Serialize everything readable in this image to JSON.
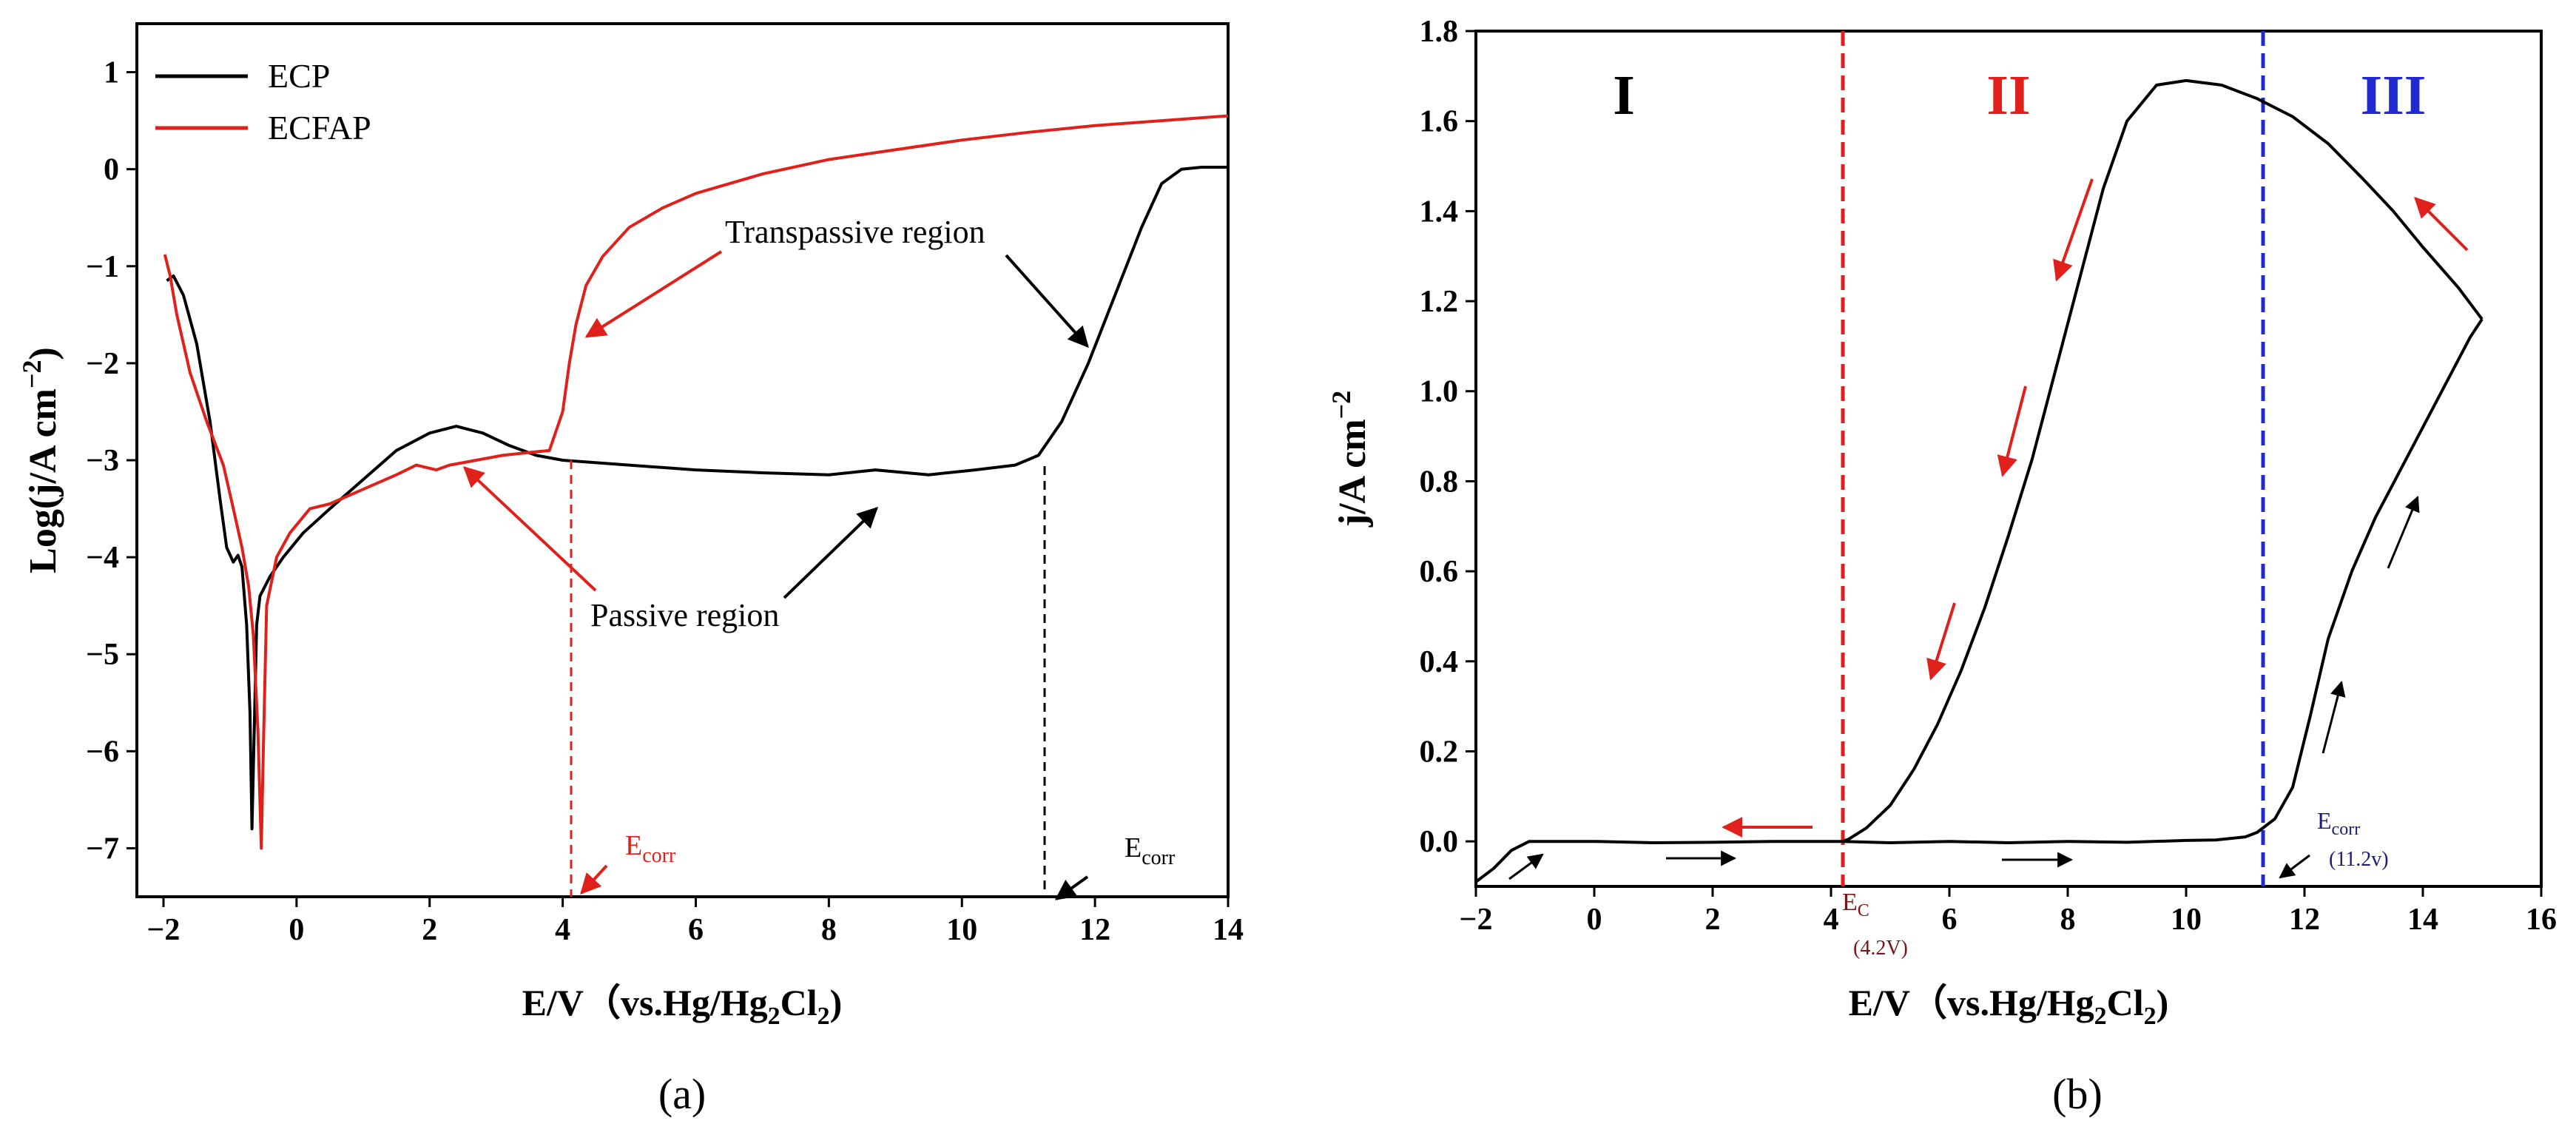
{
  "chart_data": [
    {
      "panel_label": "(a)",
      "type": "line",
      "title": "",
      "xlabel": {
        "main": "E/V（vs.Hg/Hg",
        "sub1": "2",
        "mid": "Cl",
        "sub2": "2",
        "end": ")"
      },
      "ylabel": "Log(j/A  cm",
      "ylabel_sup": "−2",
      "ylabel_end": ")",
      "xlim": [
        -2.4,
        14
      ],
      "ylim": [
        -7.5,
        1.5
      ],
      "xticks": [
        -2,
        0,
        2,
        4,
        6,
        8,
        10,
        12,
        14
      ],
      "xtick_labels": [
        "−2",
        "0",
        "2",
        "4",
        "6",
        "8",
        "10",
        "12",
        "14"
      ],
      "yticks": [
        1,
        0,
        -1,
        -2,
        -3,
        -4,
        -5,
        -6,
        -7
      ],
      "ytick_labels": [
        "1",
        "0",
        "−1",
        "−2",
        "−3",
        "−4",
        "−5",
        "−6",
        "−7"
      ],
      "legend": {
        "position": "top-left",
        "entries": [
          "ECP",
          "ECFAP"
        ]
      },
      "series": [
        {
          "name": "ECP",
          "color": "#000000",
          "points": [
            [
              -1.95,
              -1.15
            ],
            [
              -1.85,
              -1.1
            ],
            [
              -1.7,
              -1.3
            ],
            [
              -1.5,
              -1.8
            ],
            [
              -1.3,
              -2.6
            ],
            [
              -1.15,
              -3.4
            ],
            [
              -1.05,
              -3.9
            ],
            [
              -0.95,
              -4.05
            ],
            [
              -0.88,
              -3.98
            ],
            [
              -0.82,
              -4.1
            ],
            [
              -0.75,
              -4.7
            ],
            [
              -0.7,
              -5.6
            ],
            [
              -0.67,
              -6.8
            ],
            [
              -0.64,
              -5.9
            ],
            [
              -0.6,
              -4.7
            ],
            [
              -0.55,
              -4.4
            ],
            [
              -0.4,
              -4.2
            ],
            [
              -0.2,
              -4.0
            ],
            [
              0.1,
              -3.75
            ],
            [
              0.5,
              -3.5
            ],
            [
              1.0,
              -3.2
            ],
            [
              1.5,
              -2.9
            ],
            [
              2.0,
              -2.72
            ],
            [
              2.4,
              -2.65
            ],
            [
              2.8,
              -2.72
            ],
            [
              3.2,
              -2.85
            ],
            [
              3.6,
              -2.95
            ],
            [
              4.0,
              -3.0
            ],
            [
              5.0,
              -3.05
            ],
            [
              6.0,
              -3.1
            ],
            [
              7.0,
              -3.13
            ],
            [
              8.0,
              -3.15
            ],
            [
              8.7,
              -3.1
            ],
            [
              9.5,
              -3.15
            ],
            [
              10.2,
              -3.1
            ],
            [
              10.8,
              -3.05
            ],
            [
              11.15,
              -2.95
            ],
            [
              11.5,
              -2.6
            ],
            [
              11.9,
              -2.0
            ],
            [
              12.3,
              -1.3
            ],
            [
              12.7,
              -0.6
            ],
            [
              13.0,
              -0.15
            ],
            [
              13.3,
              0.0
            ],
            [
              13.6,
              0.02
            ],
            [
              14,
              0.02
            ]
          ]
        },
        {
          "name": "ECFAP",
          "color": "#e0201b",
          "points": [
            [
              -1.98,
              -0.88
            ],
            [
              -1.9,
              -1.1
            ],
            [
              -1.8,
              -1.5
            ],
            [
              -1.6,
              -2.1
            ],
            [
              -1.35,
              -2.6
            ],
            [
              -1.1,
              -3.05
            ],
            [
              -0.95,
              -3.5
            ],
            [
              -0.82,
              -3.9
            ],
            [
              -0.72,
              -4.3
            ],
            [
              -0.65,
              -4.8
            ],
            [
              -0.58,
              -5.8
            ],
            [
              -0.53,
              -7.0
            ],
            [
              -0.5,
              -6.0
            ],
            [
              -0.45,
              -4.5
            ],
            [
              -0.3,
              -4.0
            ],
            [
              -0.1,
              -3.75
            ],
            [
              0.2,
              -3.5
            ],
            [
              0.5,
              -3.45
            ],
            [
              1.0,
              -3.3
            ],
            [
              1.5,
              -3.15
            ],
            [
              1.8,
              -3.05
            ],
            [
              2.1,
              -3.1
            ],
            [
              2.3,
              -3.05
            ],
            [
              2.7,
              -3.0
            ],
            [
              3.1,
              -2.95
            ],
            [
              3.5,
              -2.92
            ],
            [
              3.8,
              -2.9
            ],
            [
              4.0,
              -2.5
            ],
            [
              4.1,
              -2.0
            ],
            [
              4.2,
              -1.6
            ],
            [
              4.35,
              -1.2
            ],
            [
              4.6,
              -0.9
            ],
            [
              5.0,
              -0.6
            ],
            [
              5.5,
              -0.4
            ],
            [
              6.0,
              -0.25
            ],
            [
              7.0,
              -0.05
            ],
            [
              8.0,
              0.1
            ],
            [
              9.0,
              0.2
            ],
            [
              10.0,
              0.3
            ],
            [
              11.0,
              0.38
            ],
            [
              12.0,
              0.45
            ],
            [
              13.0,
              0.5
            ],
            [
              14,
              0.55
            ]
          ]
        }
      ],
      "annotations": {
        "transpassive": "Transpassive region",
        "passive": "Passive region",
        "ecorr_red": {
          "main": "E",
          "sub": "corr",
          "x": 4.1
        },
        "ecorr_black": {
          "main": "E",
          "sub": "corr",
          "x": 11.2
        }
      }
    },
    {
      "panel_label": "(b)",
      "type": "line",
      "title": "",
      "xlabel": {
        "main": "E/V（vs.Hg/Hg",
        "sub1": "2",
        "mid": "Cl",
        "sub2": "2",
        "end": ")"
      },
      "ylabel": "j/A  cm",
      "ylabel_sup": "−2",
      "xlim": [
        -2,
        16
      ],
      "ylim": [
        -0.1,
        1.8
      ],
      "xticks": [
        -2,
        0,
        2,
        4,
        6,
        8,
        10,
        12,
        14,
        16
      ],
      "xtick_labels": [
        "−2",
        "0",
        "2",
        "4",
        "6",
        "8",
        "10",
        "12",
        "14",
        "16"
      ],
      "yticks": [
        0.0,
        0.2,
        0.4,
        0.6,
        0.8,
        1.0,
        1.2,
        1.4,
        1.6,
        1.8
      ],
      "ytick_labels": [
        "0.0",
        "0.2",
        "0.4",
        "0.6",
        "0.8",
        "1.0",
        "1.2",
        "1.4",
        "1.6",
        "1.8"
      ],
      "series": [
        {
          "name": "forward",
          "color": "#000000",
          "points": [
            [
              -2.0,
              -0.09
            ],
            [
              -1.7,
              -0.06
            ],
            [
              -1.4,
              -0.02
            ],
            [
              -1.1,
              0.0
            ],
            [
              -0.5,
              0.0
            ],
            [
              0.0,
              0.0
            ],
            [
              1.0,
              -0.003
            ],
            [
              2.0,
              -0.002
            ],
            [
              3.0,
              0.0
            ],
            [
              4.2,
              0.0
            ],
            [
              5.0,
              -0.003
            ],
            [
              6.0,
              0.0
            ],
            [
              7.0,
              -0.003
            ],
            [
              8.0,
              0.0
            ],
            [
              9.0,
              -0.002
            ],
            [
              10.0,
              0.002
            ],
            [
              10.5,
              0.003
            ],
            [
              11.0,
              0.01
            ],
            [
              11.2,
              0.02
            ],
            [
              11.5,
              0.05
            ],
            [
              11.8,
              0.12
            ],
            [
              12.1,
              0.28
            ],
            [
              12.4,
              0.45
            ],
            [
              12.8,
              0.6
            ],
            [
              13.2,
              0.72
            ],
            [
              13.6,
              0.82
            ],
            [
              14.0,
              0.92
            ],
            [
              14.4,
              1.02
            ],
            [
              14.8,
              1.12
            ],
            [
              15.0,
              1.16
            ]
          ]
        },
        {
          "name": "reverse",
          "color": "#000000",
          "points": [
            [
              15.0,
              1.16
            ],
            [
              14.6,
              1.23
            ],
            [
              14.0,
              1.32
            ],
            [
              13.5,
              1.4
            ],
            [
              13.0,
              1.47
            ],
            [
              12.4,
              1.55
            ],
            [
              11.8,
              1.61
            ],
            [
              11.2,
              1.65
            ],
            [
              10.6,
              1.68
            ],
            [
              10.0,
              1.69
            ],
            [
              9.5,
              1.68
            ],
            [
              9.0,
              1.6
            ],
            [
              8.6,
              1.45
            ],
            [
              8.2,
              1.25
            ],
            [
              7.8,
              1.05
            ],
            [
              7.4,
              0.85
            ],
            [
              7.0,
              0.68
            ],
            [
              6.6,
              0.52
            ],
            [
              6.2,
              0.38
            ],
            [
              5.8,
              0.26
            ],
            [
              5.4,
              0.16
            ],
            [
              5.0,
              0.08
            ],
            [
              4.6,
              0.03
            ],
            [
              4.3,
              0.005
            ],
            [
              4.2,
              0.0
            ]
          ]
        }
      ],
      "vlines": [
        {
          "x": 4.2,
          "color": "#e0201b"
        },
        {
          "x": 11.3,
          "color": "#1f2bd1"
        }
      ],
      "regions": [
        {
          "label": "I",
          "x": 0.5,
          "color": "#000000"
        },
        {
          "label": "II",
          "x": 7.0,
          "color": "#e0201b"
        },
        {
          "label": "III",
          "x": 13.5,
          "color": "#1f2bd1"
        }
      ],
      "annotations": {
        "ec": {
          "main": "E",
          "sub": "C",
          "value": "(4.2V)"
        },
        "ecorr": {
          "main": "E",
          "sub": "corr",
          "value": "(11.2v)"
        }
      }
    }
  ]
}
